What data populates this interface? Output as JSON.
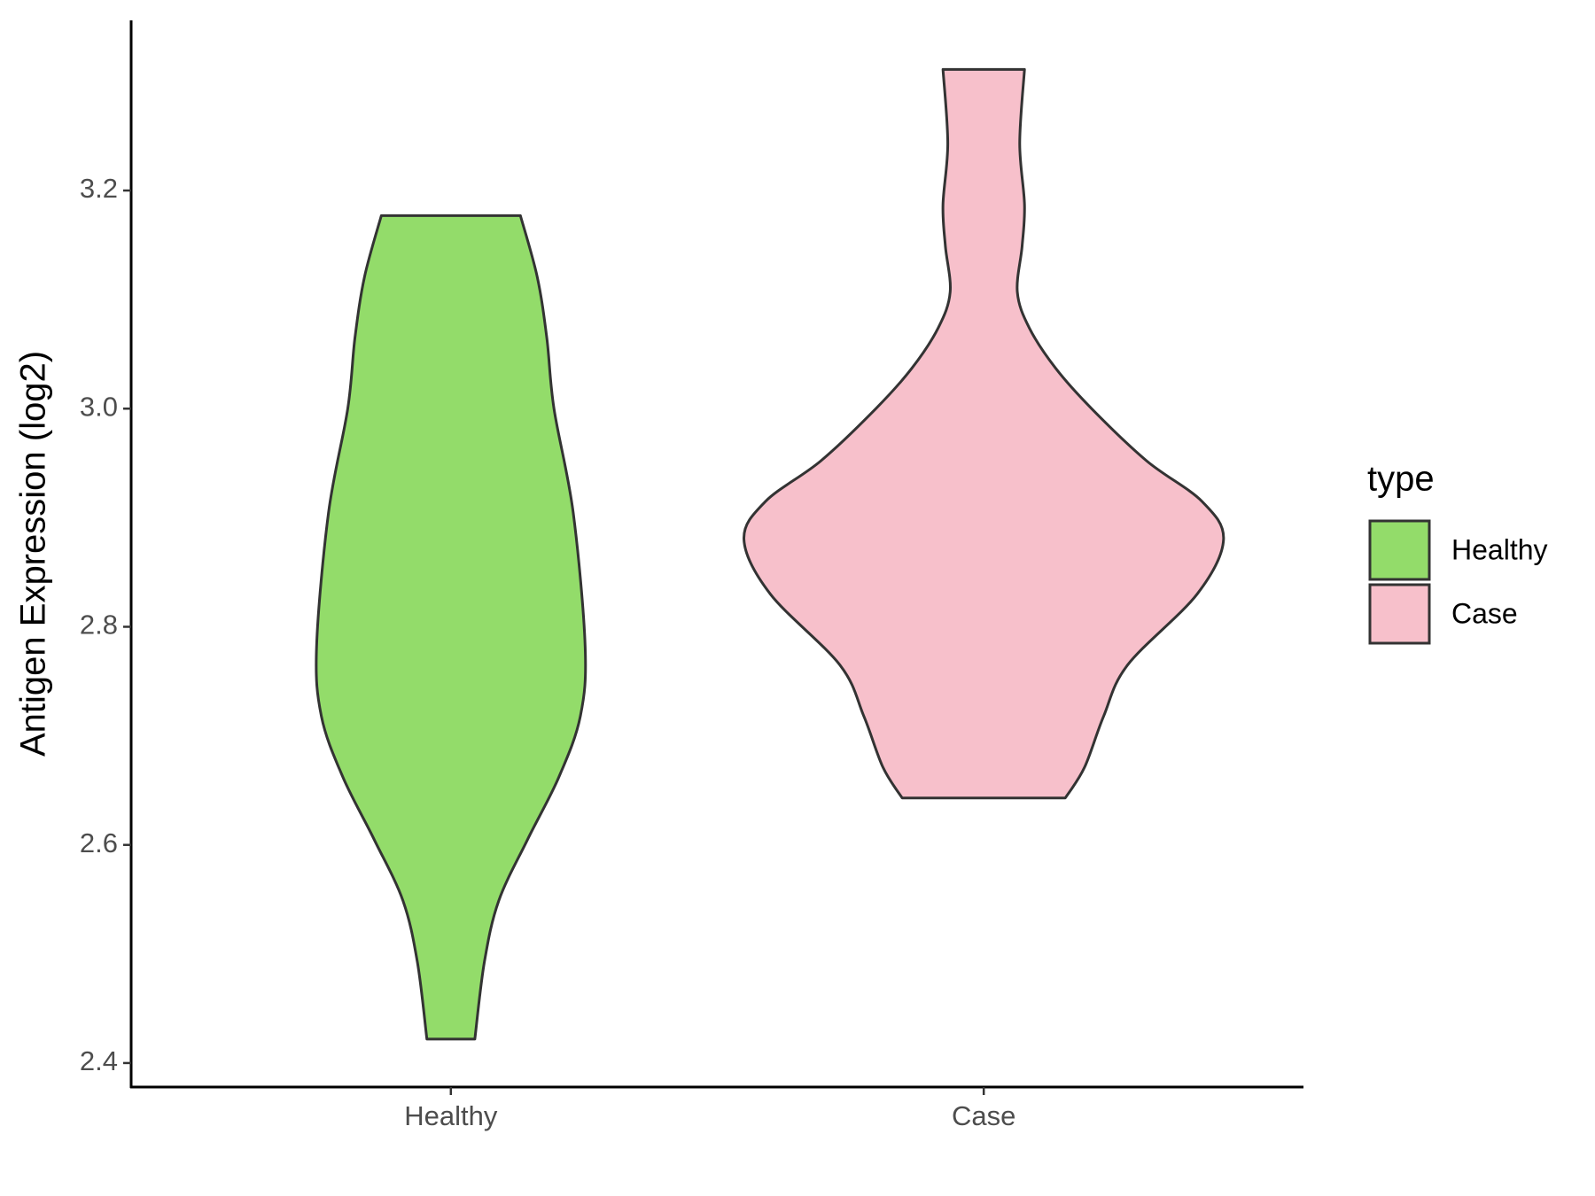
{
  "chart_data": {
    "type": "violin",
    "y_label": "Antigen Expression (log2)",
    "categories": [
      "Healthy",
      "Case"
    ],
    "legend_title": "type",
    "legend_position": "right",
    "ylim": [
      2.378,
      3.356
    ],
    "yticks": [
      {
        "value": 2.4,
        "label": "2.4"
      },
      {
        "value": 2.6,
        "label": "2.6"
      },
      {
        "value": 2.8,
        "label": "2.8"
      },
      {
        "value": 3.0,
        "label": "3.0"
      },
      {
        "value": 3.2,
        "label": "3.2"
      }
    ],
    "series": [
      {
        "name": "Healthy",
        "color": "#93dc6a",
        "y": [
          3.177,
          3.121,
          3.065,
          3.0,
          2.905,
          2.782,
          2.718,
          2.662,
          2.605,
          2.549,
          2.493,
          2.422
        ],
        "density": [
          0.29,
          0.36,
          0.4,
          0.43,
          0.51,
          0.56,
          0.54,
          0.45,
          0.32,
          0.2,
          0.14,
          0.1
        ]
      },
      {
        "name": "Case",
        "color": "#f7c0cb",
        "y": [
          3.311,
          3.243,
          3.187,
          3.149,
          3.107,
          3.074,
          3.037,
          3.0,
          2.952,
          2.915,
          2.88,
          2.83,
          2.765,
          2.718,
          2.671,
          2.643
        ],
        "density": [
          0.17,
          0.15,
          0.17,
          0.16,
          0.14,
          0.19,
          0.3,
          0.45,
          0.68,
          0.91,
          1.0,
          0.89,
          0.6,
          0.5,
          0.42,
          0.34
        ]
      }
    ]
  }
}
